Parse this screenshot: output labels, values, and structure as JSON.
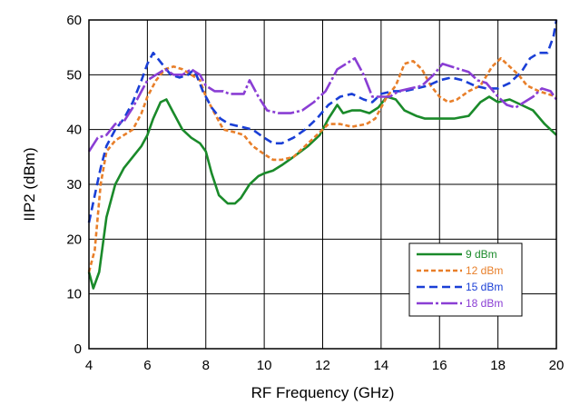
{
  "chart_data": {
    "type": "line",
    "title": "",
    "xlabel": "RF Frequency (GHz)",
    "ylabel": "IIP2 (dBm)",
    "xlim": [
      4,
      20
    ],
    "ylim": [
      0,
      60
    ],
    "x_ticks": [
      4,
      6,
      8,
      10,
      12,
      14,
      16,
      18,
      20
    ],
    "y_ticks": [
      0,
      10,
      20,
      30,
      40,
      50,
      60
    ],
    "grid": true,
    "legend_position": "bottom-right",
    "series": [
      {
        "name": "9 dBm",
        "color": "#1a8a2a",
        "dash": "solid",
        "points": [
          [
            4.0,
            14
          ],
          [
            4.15,
            11
          ],
          [
            4.35,
            14
          ],
          [
            4.6,
            24
          ],
          [
            4.9,
            30
          ],
          [
            5.2,
            33
          ],
          [
            5.5,
            35
          ],
          [
            5.8,
            37
          ],
          [
            6.0,
            39
          ],
          [
            6.2,
            42
          ],
          [
            6.45,
            45
          ],
          [
            6.65,
            45.5
          ],
          [
            6.9,
            43
          ],
          [
            7.2,
            40
          ],
          [
            7.5,
            38.5
          ],
          [
            7.8,
            37.5
          ],
          [
            8.0,
            36
          ],
          [
            8.2,
            32
          ],
          [
            8.45,
            28
          ],
          [
            8.75,
            26.5
          ],
          [
            9.0,
            26.5
          ],
          [
            9.2,
            27.5
          ],
          [
            9.5,
            30
          ],
          [
            9.8,
            31.5
          ],
          [
            10.0,
            32
          ],
          [
            10.3,
            32.5
          ],
          [
            10.6,
            33.5
          ],
          [
            11.0,
            35
          ],
          [
            11.5,
            37
          ],
          [
            11.9,
            39
          ],
          [
            12.2,
            42
          ],
          [
            12.5,
            44.5
          ],
          [
            12.7,
            43
          ],
          [
            13.0,
            43.5
          ],
          [
            13.3,
            43.5
          ],
          [
            13.6,
            43
          ],
          [
            13.9,
            44
          ],
          [
            14.2,
            46
          ],
          [
            14.5,
            45.5
          ],
          [
            14.8,
            43.5
          ],
          [
            15.2,
            42.5
          ],
          [
            15.5,
            42
          ],
          [
            16.0,
            42
          ],
          [
            16.5,
            42
          ],
          [
            17.0,
            42.5
          ],
          [
            17.4,
            45
          ],
          [
            17.7,
            46
          ],
          [
            18.0,
            45
          ],
          [
            18.4,
            45.5
          ],
          [
            18.8,
            44.5
          ],
          [
            19.2,
            43.5
          ],
          [
            19.6,
            41
          ],
          [
            20.0,
            39
          ]
        ]
      },
      {
        "name": "12 dBm",
        "color": "#e87f2a",
        "dash": "5,3",
        "points": [
          [
            4.0,
            14
          ],
          [
            4.2,
            18
          ],
          [
            4.4,
            30
          ],
          [
            4.6,
            36
          ],
          [
            4.9,
            38
          ],
          [
            5.2,
            39
          ],
          [
            5.5,
            40
          ],
          [
            5.8,
            43
          ],
          [
            6.0,
            46
          ],
          [
            6.3,
            49
          ],
          [
            6.6,
            51
          ],
          [
            6.9,
            51.5
          ],
          [
            7.2,
            51
          ],
          [
            7.5,
            50
          ],
          [
            7.8,
            49
          ],
          [
            8.0,
            46
          ],
          [
            8.3,
            43
          ],
          [
            8.6,
            40
          ],
          [
            9.0,
            39.5
          ],
          [
            9.3,
            39
          ],
          [
            9.6,
            37
          ],
          [
            10.0,
            35.5
          ],
          [
            10.3,
            34.5
          ],
          [
            10.6,
            34.5
          ],
          [
            11.0,
            35
          ],
          [
            11.4,
            37
          ],
          [
            11.8,
            39
          ],
          [
            12.2,
            41
          ],
          [
            12.6,
            41
          ],
          [
            13.0,
            40.5
          ],
          [
            13.5,
            41
          ],
          [
            13.8,
            42
          ],
          [
            14.2,
            46
          ],
          [
            14.5,
            48
          ],
          [
            14.8,
            52
          ],
          [
            15.1,
            52.5
          ],
          [
            15.4,
            51
          ],
          [
            15.7,
            48
          ],
          [
            16.0,
            46
          ],
          [
            16.3,
            45
          ],
          [
            16.6,
            45.5
          ],
          [
            17.0,
            47
          ],
          [
            17.4,
            48
          ],
          [
            17.8,
            51.5
          ],
          [
            18.1,
            53
          ],
          [
            18.4,
            51.5
          ],
          [
            18.7,
            50
          ],
          [
            19.0,
            48
          ],
          [
            19.4,
            47
          ],
          [
            19.7,
            46.5
          ],
          [
            20.0,
            46
          ]
        ]
      },
      {
        "name": "15 dBm",
        "color": "#1a3fd6",
        "dash": "9,5",
        "points": [
          [
            4.0,
            23
          ],
          [
            4.2,
            28
          ],
          [
            4.4,
            33
          ],
          [
            4.6,
            37
          ],
          [
            4.9,
            40
          ],
          [
            5.2,
            42
          ],
          [
            5.5,
            45
          ],
          [
            5.8,
            49
          ],
          [
            6.0,
            52
          ],
          [
            6.2,
            54
          ],
          [
            6.5,
            52
          ],
          [
            6.8,
            50
          ],
          [
            7.1,
            49.5
          ],
          [
            7.4,
            50
          ],
          [
            7.6,
            51
          ],
          [
            7.9,
            47
          ],
          [
            8.2,
            44
          ],
          [
            8.5,
            42
          ],
          [
            8.8,
            41
          ],
          [
            9.2,
            40.5
          ],
          [
            9.6,
            40
          ],
          [
            10.0,
            38.5
          ],
          [
            10.3,
            37.5
          ],
          [
            10.6,
            37.5
          ],
          [
            11.0,
            38.5
          ],
          [
            11.4,
            40
          ],
          [
            11.8,
            42
          ],
          [
            12.2,
            44.5
          ],
          [
            12.6,
            46
          ],
          [
            13.0,
            46.5
          ],
          [
            13.4,
            45.5
          ],
          [
            13.7,
            45
          ],
          [
            14.0,
            46.5
          ],
          [
            14.4,
            47
          ],
          [
            14.8,
            47
          ],
          [
            15.2,
            47.5
          ],
          [
            15.6,
            48
          ],
          [
            16.0,
            49
          ],
          [
            16.4,
            49.5
          ],
          [
            16.8,
            49
          ],
          [
            17.2,
            48
          ],
          [
            17.6,
            47.5
          ],
          [
            18.0,
            47.5
          ],
          [
            18.4,
            48.5
          ],
          [
            18.8,
            50.5
          ],
          [
            19.1,
            53
          ],
          [
            19.4,
            54
          ],
          [
            19.7,
            54
          ],
          [
            19.9,
            57
          ],
          [
            20.0,
            60
          ]
        ]
      },
      {
        "name": "18 dBm",
        "color": "#8a3ed4",
        "dash": "18,3,3,3",
        "points": [
          [
            4.0,
            36
          ],
          [
            4.3,
            38.5
          ],
          [
            4.6,
            39
          ],
          [
            4.9,
            41
          ],
          [
            5.2,
            41.5
          ],
          [
            5.5,
            44
          ],
          [
            5.8,
            47
          ],
          [
            6.0,
            49
          ],
          [
            6.3,
            50
          ],
          [
            6.6,
            51
          ],
          [
            6.9,
            50
          ],
          [
            7.2,
            50
          ],
          [
            7.5,
            51
          ],
          [
            7.8,
            50
          ],
          [
            8.0,
            48
          ],
          [
            8.3,
            47
          ],
          [
            8.6,
            47
          ],
          [
            8.8,
            46.5
          ],
          [
            9.0,
            46.5
          ],
          [
            9.3,
            46.5
          ],
          [
            9.5,
            49
          ],
          [
            9.8,
            46
          ],
          [
            10.1,
            43.5
          ],
          [
            10.5,
            43
          ],
          [
            10.9,
            43
          ],
          [
            11.3,
            43.5
          ],
          [
            11.7,
            45
          ],
          [
            12.1,
            47
          ],
          [
            12.5,
            51
          ],
          [
            12.8,
            52
          ],
          [
            13.1,
            53
          ],
          [
            13.4,
            50
          ],
          [
            13.7,
            46
          ],
          [
            14.0,
            46
          ],
          [
            14.3,
            46
          ],
          [
            14.6,
            47
          ],
          [
            15.0,
            47.5
          ],
          [
            15.4,
            48
          ],
          [
            15.8,
            50
          ],
          [
            16.1,
            52
          ],
          [
            16.4,
            51.5
          ],
          [
            16.7,
            51
          ],
          [
            17.0,
            50.5
          ],
          [
            17.3,
            49
          ],
          [
            17.6,
            48.5
          ],
          [
            18.0,
            46
          ],
          [
            18.3,
            44.5
          ],
          [
            18.6,
            44
          ],
          [
            18.9,
            45
          ],
          [
            19.2,
            46
          ],
          [
            19.5,
            47.5
          ],
          [
            19.8,
            47
          ],
          [
            20.0,
            45.5
          ]
        ]
      }
    ]
  }
}
